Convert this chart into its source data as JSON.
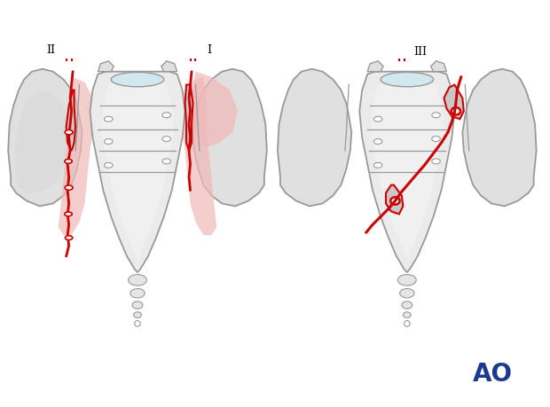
{
  "bg_color": "#ffffff",
  "bone_fill_light": "#e8e8e8",
  "bone_fill_mid": "#d4d4d4",
  "bone_outline": "#999999",
  "bone_outline_dark": "#777777",
  "red_line": "#cc0000",
  "pink_fill": "#f0b8b8",
  "pink_fill2": "#eaaaa0",
  "sacrum_fill": "#e8e8e8",
  "sacrum_fill2": "#f0f0f0",
  "ao_color": "#1a3a8f",
  "label_II": "II",
  "label_I": "I",
  "label_III": "III",
  "light_blue": "#d0e8ee",
  "gray_piece": "#c8c8c8",
  "shadow_gray": "#d0d0d0"
}
